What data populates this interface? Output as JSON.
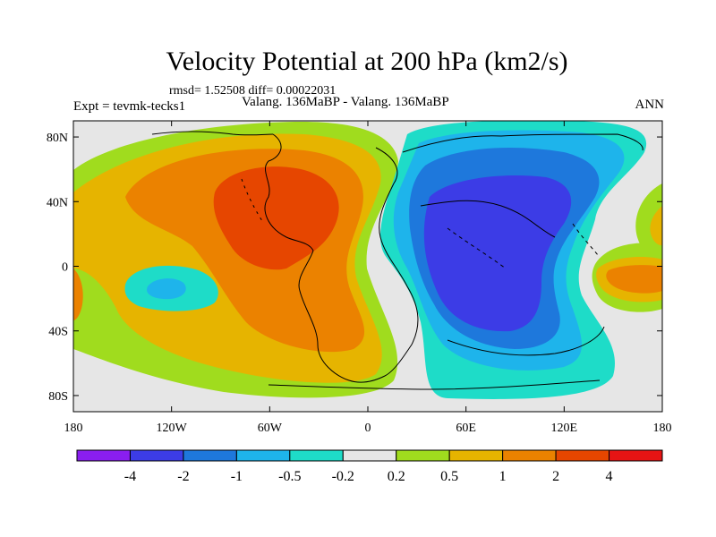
{
  "chart_data": {
    "type": "heatmap",
    "title": "Velocity Potential at 200 hPa (km2/s)",
    "stats_line": "rmsd= 1.52508 diff= 0.00022031",
    "left_label": "Expt = tevmk-tecks1",
    "center_label": "Valang. 136MaBP - Valang. 136MaBP",
    "right_label": "ANN",
    "x_ticks": [
      "180",
      "120W",
      "60W",
      "0",
      "60E",
      "120E",
      "180"
    ],
    "x_tick_values": [
      -180,
      -120,
      -60,
      0,
      60,
      120,
      180
    ],
    "y_ticks": [
      "80N",
      "40N",
      "0",
      "40S",
      "80S"
    ],
    "y_tick_values": [
      80,
      40,
      0,
      -40,
      -80
    ],
    "xlim": [
      -180,
      180
    ],
    "ylim": [
      -90,
      90
    ],
    "colorbar": {
      "colors": [
        "#8a1ef0",
        "#3c3ce6",
        "#1e78dc",
        "#1eb4eb",
        "#1edcc8",
        "#e6e6e6",
        "#a0dc1e",
        "#e6b400",
        "#eb8200",
        "#e64600",
        "#e61414"
      ],
      "labels": [
        "-4",
        "-2",
        "-1",
        "-0.5",
        "-0.2",
        "0.2",
        "0.5",
        "1",
        "2",
        "4"
      ]
    }
  }
}
